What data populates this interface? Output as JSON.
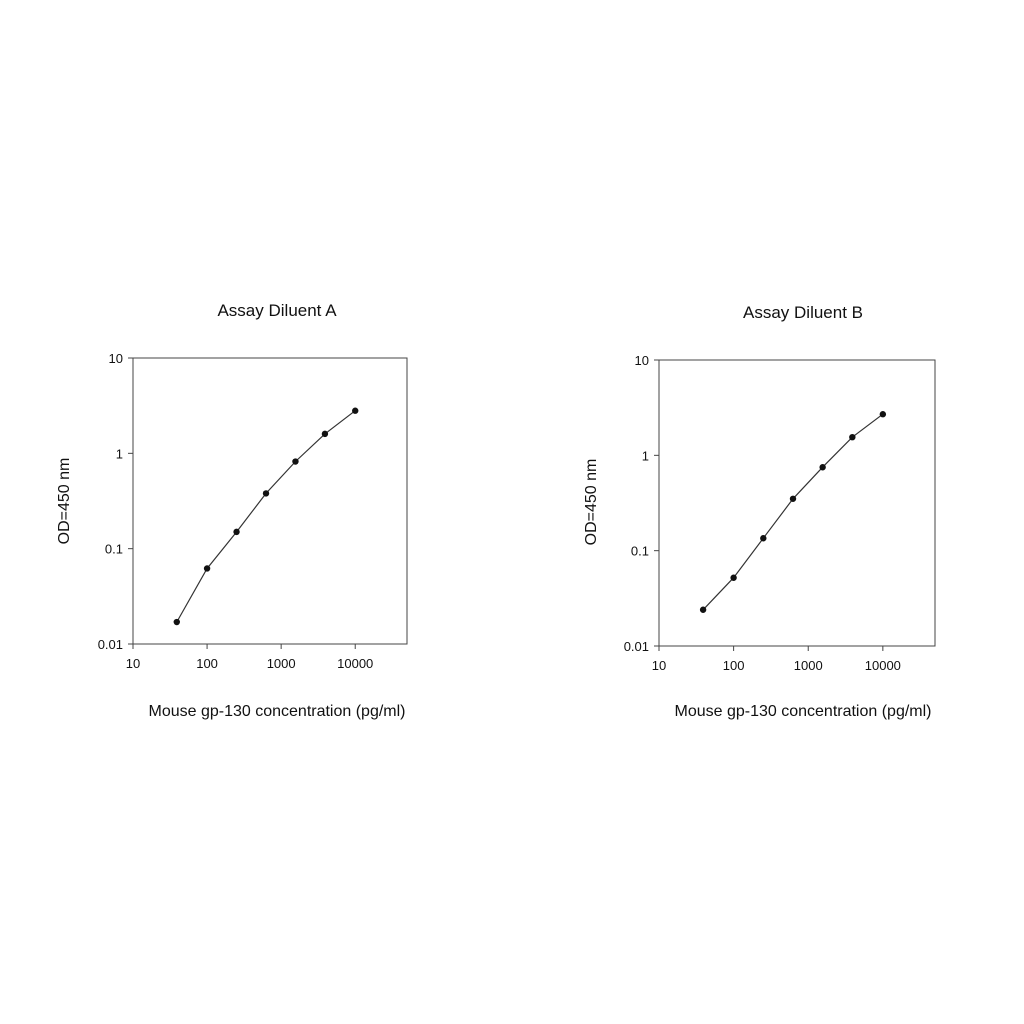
{
  "chart_data": [
    {
      "type": "line",
      "title": "Assay Diluent A",
      "xlabel": "Mouse gp-130 concentration (pg/ml)",
      "ylabel": "OD=450 nm",
      "xscale": "log",
      "yscale": "log",
      "xlim": [
        10,
        50000
      ],
      "ylim": [
        0.01,
        10
      ],
      "xticks": [
        10,
        100,
        1000,
        10000
      ],
      "xtick_labels": [
        "10",
        "100",
        "1000",
        "10000"
      ],
      "yticks": [
        0.01,
        0.1,
        1,
        10
      ],
      "ytick_labels": [
        "0.01",
        "0.1",
        "1",
        "10"
      ],
      "grid": false,
      "legend": false,
      "line_color": "#333333",
      "marker_color": "#111111",
      "series": [
        {
          "x": [
            39,
            100,
            250,
            625,
            1560,
            3900,
            10000
          ],
          "y": [
            0.017,
            0.062,
            0.15,
            0.38,
            0.82,
            1.6,
            2.8
          ]
        }
      ]
    },
    {
      "type": "line",
      "title": "Assay Diluent B",
      "xlabel": "Mouse gp-130 concentration (pg/ml)",
      "ylabel": "OD=450 nm",
      "xscale": "log",
      "yscale": "log",
      "xlim": [
        10,
        50000
      ],
      "ylim": [
        0.01,
        10
      ],
      "xticks": [
        10,
        100,
        1000,
        10000
      ],
      "xtick_labels": [
        "10",
        "100",
        "1000",
        "10000"
      ],
      "yticks": [
        0.01,
        0.1,
        1,
        10
      ],
      "ytick_labels": [
        "0.01",
        "0.1",
        "1",
        "10"
      ],
      "grid": false,
      "legend": false,
      "line_color": "#333333",
      "marker_color": "#111111",
      "series": [
        {
          "x": [
            39,
            100,
            250,
            625,
            1560,
            3900,
            10000
          ],
          "y": [
            0.024,
            0.052,
            0.135,
            0.35,
            0.75,
            1.55,
            2.7
          ]
        }
      ]
    }
  ]
}
